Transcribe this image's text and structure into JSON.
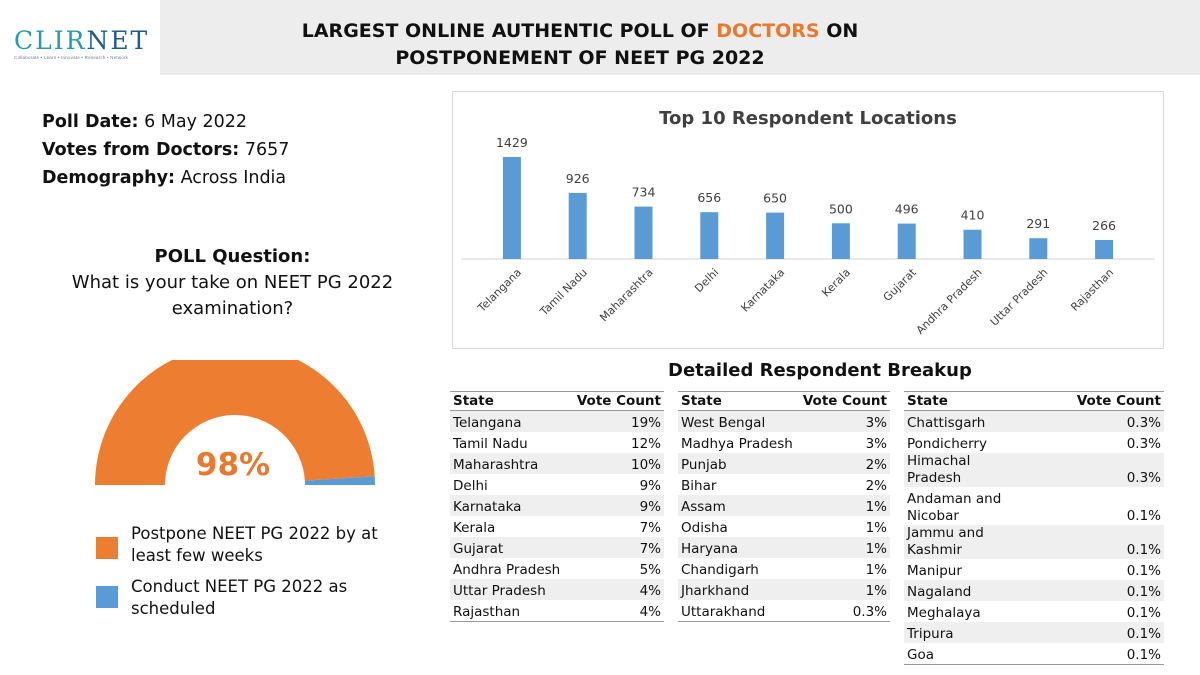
{
  "header": {
    "title_line1_pre": "LARGEST ONLINE AUTHENTIC POLL OF ",
    "title_line1_accent": "DOCTORS",
    "title_line1_post": " ON",
    "title_line2": "POSTPONEMENT OF NEET PG 2022"
  },
  "logo": {
    "word_cli": "CLIR",
    "word_net": "NET",
    "tagline": "Collaborate • Learn • Innovate • Research • Network"
  },
  "info": {
    "poll_date_label": "Poll Date:",
    "poll_date_value": "6 May 2022",
    "votes_label": "Votes from Doctors:",
    "votes_value": "7657",
    "demography_label": "Demography:",
    "demography_value": "Across India"
  },
  "question": {
    "heading": "POLL Question:",
    "text": "What is your take on NEET PG 2022 examination?"
  },
  "gauge": {
    "percent_label": "98%",
    "postpone_fraction": 0.98,
    "colors": {
      "postpone": "#ed7d31",
      "conduct": "#5b9bd5"
    },
    "legend": [
      {
        "label": "Postpone NEET PG 2022 by at least few weeks",
        "color": "#ed7d31"
      },
      {
        "label": "Conduct NEET PG 2022 as scheduled",
        "color": "#5b9bd5"
      }
    ]
  },
  "chart_data": {
    "type": "bar",
    "title": "Top 10 Respondent Locations",
    "categories": [
      "Telangana",
      "Tamil Nadu",
      "Maharashtra",
      "Delhi",
      "Karnataka",
      "Kerala",
      "Gujarat",
      "Andhra Pradesh",
      "Uttar Pradesh",
      "Rajasthan"
    ],
    "values": [
      1429,
      926,
      734,
      656,
      650,
      500,
      496,
      410,
      291,
      266
    ],
    "bar_color": "#5b9bd5",
    "ylim": [
      0,
      1429
    ],
    "grid": false
  },
  "breakup": {
    "title": "Detailed Respondent Breakup",
    "header_state": "State",
    "header_count": "Vote Count",
    "tables": [
      {
        "rows": [
          {
            "state": "Telangana",
            "pct": "19%"
          },
          {
            "state": "Tamil Nadu",
            "pct": "12%"
          },
          {
            "state": "Maharashtra",
            "pct": "10%"
          },
          {
            "state": "Delhi",
            "pct": "9%"
          },
          {
            "state": "Karnataka",
            "pct": "9%"
          },
          {
            "state": "Kerala",
            "pct": "7%"
          },
          {
            "state": "Gujarat",
            "pct": "7%"
          },
          {
            "state": "Andhra Pradesh",
            "pct": "5%"
          },
          {
            "state": "Uttar Pradesh",
            "pct": "4%"
          },
          {
            "state": "Rajasthan",
            "pct": "4%"
          }
        ]
      },
      {
        "rows": [
          {
            "state": "West Bengal",
            "pct": "3%"
          },
          {
            "state": "Madhya Pradesh",
            "pct": "3%"
          },
          {
            "state": "Punjab",
            "pct": "2%"
          },
          {
            "state": "Bihar",
            "pct": "2%"
          },
          {
            "state": "Assam",
            "pct": "1%"
          },
          {
            "state": "Odisha",
            "pct": "1%"
          },
          {
            "state": "Haryana",
            "pct": "1%"
          },
          {
            "state": "Chandigarh",
            "pct": "1%"
          },
          {
            "state": "Jharkhand",
            "pct": "1%"
          },
          {
            "state": "Uttarakhand",
            "pct": "0.3%"
          }
        ]
      },
      {
        "rows": [
          {
            "state": "Chattisgarh",
            "pct": "0.3%"
          },
          {
            "state": "Pondicherry",
            "pct": "0.3%"
          },
          {
            "state": "Himachal Pradesh",
            "pct": "0.3%"
          },
          {
            "state": "Andaman and Nicobar",
            "pct": "0.1%"
          },
          {
            "state": "Jammu and Kashmir",
            "pct": "0.1%"
          },
          {
            "state": "Manipur",
            "pct": "0.1%"
          },
          {
            "state": "Nagaland",
            "pct": "0.1%"
          },
          {
            "state": "Meghalaya",
            "pct": "0.1%"
          },
          {
            "state": "Tripura",
            "pct": "0.1%"
          },
          {
            "state": "Goa",
            "pct": "0.1%"
          }
        ]
      }
    ]
  }
}
